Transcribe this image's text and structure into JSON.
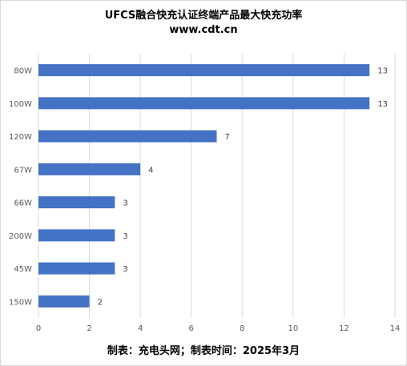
{
  "chart_data": {
    "type": "bar",
    "orientation": "horizontal",
    "title": "UFCS融合快充认证终端产品最大快充功率",
    "subtitle": "www.cdt.cn",
    "categories": [
      "80W",
      "100W",
      "120W",
      "67W",
      "66W",
      "200W",
      "45W",
      "150W"
    ],
    "values": [
      13,
      13,
      7,
      4,
      3,
      3,
      3,
      2
    ],
    "xlim": [
      0,
      14
    ],
    "x_ticks": [
      0,
      2,
      4,
      6,
      8,
      10,
      12,
      14
    ],
    "grid": "vertical",
    "bar_color": "#4472c4",
    "data_labels": true
  },
  "footer": "制表：充电头网；制表时间：2025年3月"
}
